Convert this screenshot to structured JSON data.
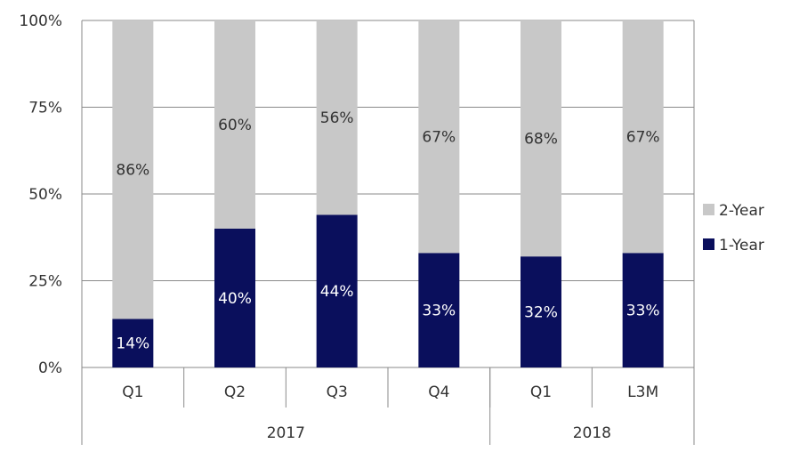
{
  "chart_data": {
    "type": "bar",
    "stacked": true,
    "percent": true,
    "categories": [
      "Q1",
      "Q2",
      "Q3",
      "Q4",
      "Q1",
      "L3M"
    ],
    "groups": [
      {
        "label": "2017",
        "span": 4
      },
      {
        "label": "2018",
        "span": 2
      }
    ],
    "series": [
      {
        "name": "1-Year",
        "color": "#0a0f5c",
        "label_color": "#ffffff",
        "values": [
          14,
          40,
          44,
          33,
          32,
          33
        ],
        "labels": [
          "14%",
          "40%",
          "44%",
          "33%",
          "32%",
          "33%"
        ]
      },
      {
        "name": "2-Year",
        "color": "#c8c8c8",
        "label_color": "#333333",
        "values": [
          86,
          60,
          56,
          67,
          68,
          67
        ],
        "labels": [
          "86%",
          "60%",
          "56%",
          "67%",
          "68%",
          "67%"
        ]
      }
    ],
    "y_ticks": [
      "0%",
      "25%",
      "50%",
      "75%",
      "100%"
    ],
    "ylim": [
      0,
      100
    ],
    "grid": true,
    "legend": {
      "position": "right",
      "order": [
        "2-Year",
        "1-Year"
      ]
    }
  }
}
